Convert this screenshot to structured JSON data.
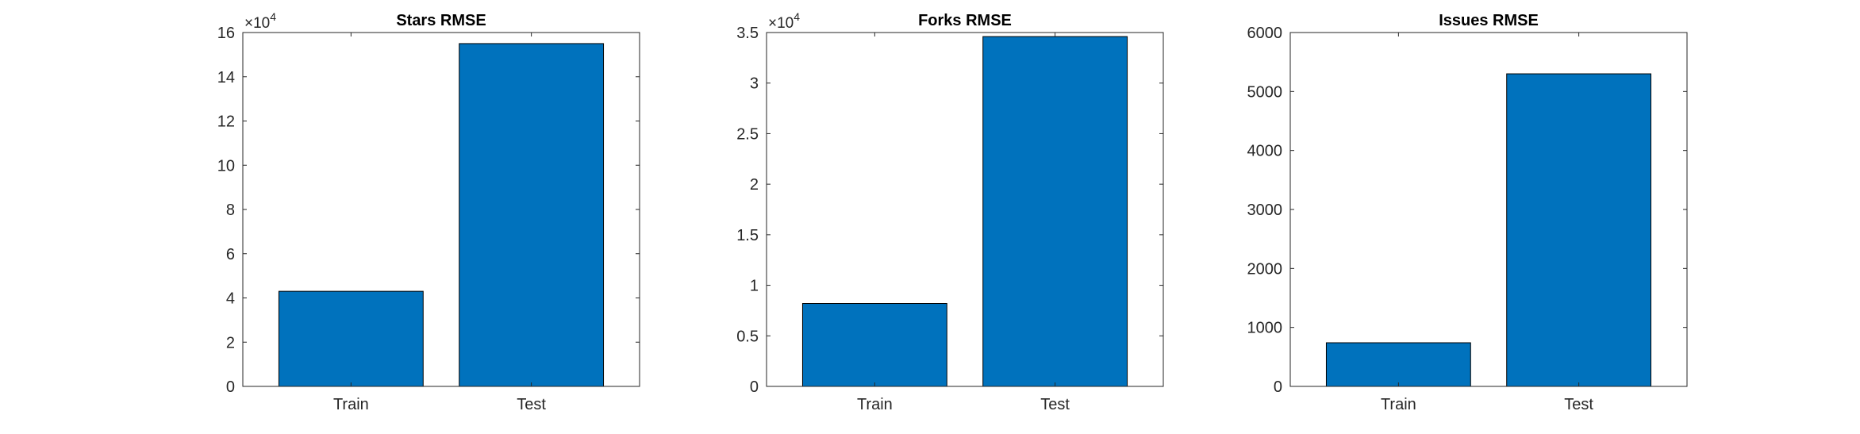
{
  "figure": {
    "background": "#ffffff"
  },
  "chart_data": [
    {
      "type": "bar",
      "title": "Stars RMSE",
      "categories": [
        "Train",
        "Test"
      ],
      "values": [
        43000,
        155000
      ],
      "ylim": [
        0,
        160000
      ],
      "yticks": [
        0,
        2,
        4,
        6,
        8,
        10,
        12,
        14,
        16
      ],
      "ytick_labels": [
        "0",
        "2",
        "4",
        "6",
        "8",
        "10",
        "12",
        "14",
        "16"
      ],
      "exponent_label": "×10",
      "exponent_sup": "4",
      "xlabel": "",
      "ylabel": "",
      "bar_color": "#0072bd",
      "grid": false
    },
    {
      "type": "bar",
      "title": "Forks RMSE",
      "categories": [
        "Train",
        "Test"
      ],
      "values": [
        8200,
        34600
      ],
      "ylim": [
        0,
        35000
      ],
      "yticks": [
        0,
        0.5,
        1,
        1.5,
        2,
        2.5,
        3,
        3.5
      ],
      "ytick_labels": [
        "0",
        "0.5",
        "1",
        "1.5",
        "2",
        "2.5",
        "3",
        "3.5"
      ],
      "exponent_label": "×10",
      "exponent_sup": "4",
      "xlabel": "",
      "ylabel": "",
      "bar_color": "#0072bd",
      "grid": false
    },
    {
      "type": "bar",
      "title": "Issues RMSE",
      "categories": [
        "Train",
        "Test"
      ],
      "values": [
        740,
        5300
      ],
      "ylim": [
        0,
        6000
      ],
      "yticks": [
        0,
        1000,
        2000,
        3000,
        4000,
        5000,
        6000
      ],
      "ytick_labels": [
        "0",
        "1000",
        "2000",
        "3000",
        "4000",
        "5000",
        "6000"
      ],
      "exponent_label": "",
      "exponent_sup": "",
      "xlabel": "",
      "ylabel": "",
      "bar_color": "#0072bd",
      "grid": false
    }
  ]
}
